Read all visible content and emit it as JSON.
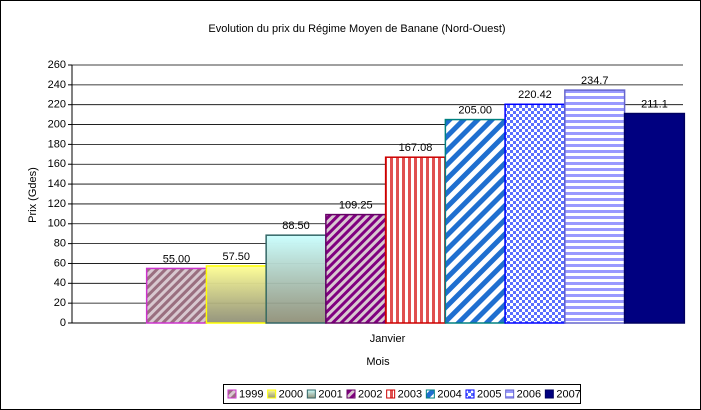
{
  "chart_data": {
    "type": "bar",
    "title": "Evolution du prix du Régime Moyen de Banane (Nord-Ouest)",
    "x_label": "Mois",
    "y_label": "Prix (Gdes)",
    "categories": [
      "Janvier"
    ],
    "series": [
      {
        "name": "1999",
        "color": "#9a6f80",
        "border": "#cc33cc",
        "pattern": "diagonal-fine",
        "values": [
          55
        ],
        "value_labels": [
          "55.00"
        ]
      },
      {
        "name": "2000",
        "color": "#ffff99",
        "border": "#ffff00",
        "pattern": "gradient",
        "values": [
          57.5
        ],
        "value_labels": [
          "57.50"
        ]
      },
      {
        "name": "2001",
        "color": "#ccffff",
        "border": "#336666",
        "pattern": "gradient",
        "values": [
          88.5
        ],
        "value_labels": [
          "88.50"
        ]
      },
      {
        "name": "2002",
        "color": "#800080",
        "border": "#660066",
        "pattern": "diagonal-fine",
        "values": [
          109.25
        ]
      },
      {
        "name": "2003",
        "color": "#e05050",
        "border": "#cc0000",
        "pattern": "vertical",
        "values": [
          167.08
        ]
      },
      {
        "name": "2004",
        "color": "#1f6fd0",
        "border": "#008080",
        "pattern": "diagonal-wide",
        "values": [
          205
        ],
        "value_labels": [
          "205.00"
        ]
      },
      {
        "name": "2005",
        "color": "#5a6fff",
        "border": "#0000ff",
        "pattern": "checker",
        "values": [
          220.42
        ]
      },
      {
        "name": "2006",
        "color": "#9999ff",
        "border": "#6666cc",
        "pattern": "horizontal",
        "values": [
          234.7
        ]
      },
      {
        "name": "2007",
        "color": "#000080",
        "border": "#000060",
        "pattern": "solid",
        "values": [
          211.1
        ]
      }
    ],
    "ylim": [
      0,
      260
    ],
    "yticks": [
      0,
      20,
      40,
      60,
      80,
      100,
      120,
      140,
      160,
      180,
      200,
      220,
      240,
      260
    ],
    "grid": true,
    "legend": "bottom"
  }
}
